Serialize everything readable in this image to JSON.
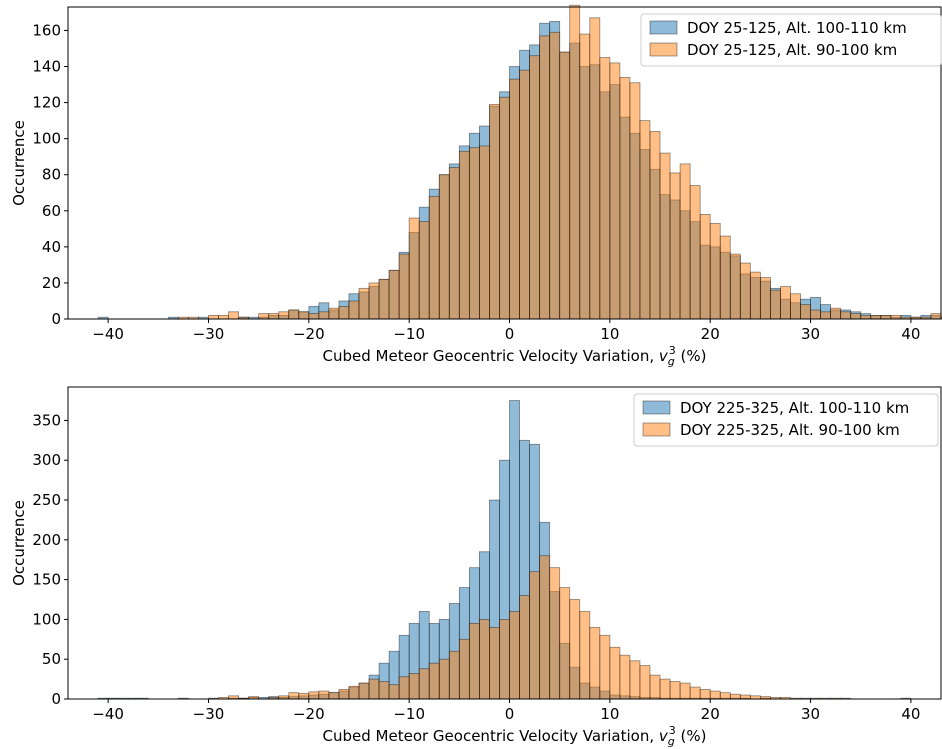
{
  "chart_data": [
    {
      "type": "histogram",
      "xlabel": "Cubed Meteor Geocentric Velocity Variation, ",
      "xlabel_var": "v",
      "xlabel_sub": "g",
      "xlabel_sup": "3",
      "xlabel_unit": " (%)",
      "ylabel": "Occurrence",
      "xlim": [
        -44,
        43
      ],
      "ylim": [
        0,
        173
      ],
      "xticks": [
        -40,
        -30,
        -20,
        -10,
        0,
        10,
        20,
        30,
        40
      ],
      "yticks": [
        0,
        20,
        40,
        60,
        80,
        100,
        120,
        140,
        160
      ],
      "bin_start": -41,
      "bin_width": 1,
      "legend_position": "top-right",
      "series": [
        {
          "name": "DOY 25-125, Alt. 100-110 km",
          "color": "#1f77b4",
          "values": [
            1,
            0,
            0,
            0,
            0,
            0,
            0,
            1,
            0,
            0,
            1,
            0,
            0,
            0,
            1,
            1,
            1,
            2,
            2,
            5,
            4,
            7,
            9,
            5,
            10,
            14,
            15,
            18,
            22,
            27,
            37,
            48,
            62,
            72,
            80,
            86,
            96,
            103,
            107,
            118,
            126,
            140,
            149,
            152,
            164,
            165,
            148,
            153,
            140,
            141,
            126,
            130,
            112,
            103,
            94,
            83,
            69,
            66,
            60,
            54,
            41,
            40,
            37,
            35,
            25,
            23,
            21,
            17,
            11,
            9,
            11,
            12,
            8,
            5,
            5,
            4,
            3,
            2,
            2,
            1,
            2,
            1,
            2,
            2,
            1,
            2,
            3,
            1
          ]
        },
        {
          "name": "DOY 25-125, Alt. 90-100 km",
          "color": "#ff7f0e",
          "values": [
            0,
            0,
            0,
            0,
            0,
            0,
            0,
            0,
            1,
            1,
            0,
            2,
            2,
            4,
            1,
            0,
            3,
            3,
            4,
            5,
            4,
            3,
            4,
            6,
            7,
            10,
            17,
            20,
            22,
            27,
            36,
            56,
            54,
            68,
            80,
            84,
            93,
            95,
            96,
            119,
            123,
            133,
            138,
            146,
            157,
            159,
            148,
            174,
            158,
            167,
            145,
            142,
            134,
            131,
            110,
            104,
            92,
            81,
            86,
            74,
            58,
            53,
            46,
            36,
            31,
            26,
            23,
            16,
            18,
            14,
            8,
            5,
            4,
            6,
            4,
            3,
            2,
            2,
            2,
            2,
            1,
            1,
            1,
            3,
            1,
            1,
            1,
            1
          ]
        }
      ]
    },
    {
      "type": "histogram",
      "xlabel": "Cubed Meteor Geocentric Velocity Variation, ",
      "xlabel_var": "v",
      "xlabel_sub": "g",
      "xlabel_sup": "3",
      "xlabel_unit": " (%)",
      "ylabel": "Occurrence",
      "xlim": [
        -44,
        43
      ],
      "ylim": [
        0,
        392
      ],
      "xticks": [
        -40,
        -30,
        -20,
        -10,
        0,
        10,
        20,
        30,
        40
      ],
      "yticks": [
        0,
        50,
        100,
        150,
        200,
        250,
        300,
        350
      ],
      "bin_start": -41,
      "bin_width": 1,
      "legend_position": "top-right",
      "series": [
        {
          "name": "DOY 225-325, Alt. 100-110 km",
          "color": "#1f77b4",
          "values": [
            1,
            1,
            1,
            1,
            1,
            0,
            0,
            0,
            1,
            0,
            0,
            1,
            0,
            1,
            1,
            2,
            2,
            3,
            2,
            3,
            4,
            5,
            6,
            8,
            10,
            15,
            20,
            30,
            45,
            60,
            80,
            95,
            110,
            95,
            100,
            120,
            140,
            165,
            185,
            250,
            300,
            375,
            325,
            320,
            222,
            135,
            70,
            40,
            20,
            15,
            10,
            5,
            4,
            3,
            2,
            2,
            1,
            1,
            1,
            1,
            1,
            1,
            1,
            1,
            1,
            0,
            1,
            0,
            0,
            0,
            0,
            0,
            0,
            0,
            0,
            0,
            0,
            0,
            0,
            0,
            0,
            0,
            0,
            0,
            0,
            0,
            0,
            0
          ]
        },
        {
          "name": "DOY 225-325, Alt. 90-100 km",
          "color": "#ff7f0e",
          "values": [
            0,
            0,
            0,
            0,
            0,
            0,
            0,
            0,
            0,
            0,
            0,
            0,
            2,
            4,
            1,
            3,
            0,
            2,
            4,
            8,
            7,
            9,
            10,
            8,
            12,
            16,
            20,
            25,
            22,
            18,
            28,
            32,
            38,
            45,
            50,
            60,
            75,
            95,
            100,
            90,
            100,
            110,
            130,
            160,
            180,
            165,
            140,
            125,
            110,
            90,
            80,
            65,
            55,
            48,
            42,
            30,
            25,
            22,
            20,
            15,
            12,
            10,
            8,
            6,
            5,
            4,
            3,
            2,
            2,
            1,
            1,
            1,
            1,
            1,
            1,
            0,
            0,
            0,
            0,
            0,
            1,
            0,
            0,
            0,
            0,
            0,
            0,
            1
          ]
        }
      ]
    }
  ]
}
